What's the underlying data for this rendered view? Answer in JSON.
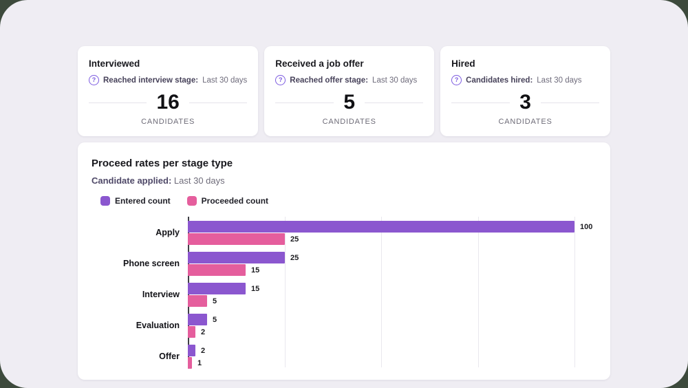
{
  "page": {
    "background": "#efedf3",
    "outer_background": "#3d4a3c",
    "card_background": "#ffffff"
  },
  "summary_cards": [
    {
      "title": "Interviewed",
      "help_icon": "?",
      "metric_label": "Reached interview stage:",
      "metric_period": "Last 30 days",
      "value": "16",
      "unit": "CANDIDATES"
    },
    {
      "title": "Received a job offer",
      "help_icon": "?",
      "metric_label": "Reached offer stage:",
      "metric_period": "Last 30 days",
      "value": "5",
      "unit": "CANDIDATES"
    },
    {
      "title": "Hired",
      "help_icon": "?",
      "metric_label": "Candidates hired:",
      "metric_period": "Last 30 days",
      "value": "3",
      "unit": "CANDIDATES"
    }
  ],
  "chart_card": {
    "title": "Proceed rates per stage type",
    "filter_label": "Candidate applied:",
    "filter_value": "Last 30 days",
    "legend": [
      {
        "label": "Entered count",
        "color": "#8b57cf"
      },
      {
        "label": "Proceeded count",
        "color": "#e55e9d"
      }
    ]
  },
  "chart_data": {
    "type": "bar",
    "orientation": "horizontal",
    "title": "Proceed rates per stage type",
    "categories": [
      "Apply",
      "Phone screen",
      "Interview",
      "Evaluation",
      "Offer"
    ],
    "series": [
      {
        "name": "Entered count",
        "color": "#8b57cf",
        "values": [
          100,
          25,
          15,
          5,
          2
        ]
      },
      {
        "name": "Proceeded count",
        "color": "#e55e9d",
        "values": [
          25,
          15,
          5,
          2,
          1
        ]
      }
    ],
    "xlim": [
      0,
      100
    ],
    "gridlines": [
      0,
      25,
      50,
      75,
      100
    ],
    "grid": true,
    "legend_position": "top",
    "value_labels": true,
    "axis_color": "#3f3f46",
    "gridline_color": "#e9e7ee"
  }
}
